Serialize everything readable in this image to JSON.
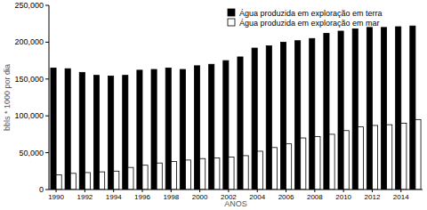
{
  "chart_data": {
    "type": "bar",
    "x_label": "ANOS",
    "y_label": "bbls * 1000 por dia",
    "categories": [
      "1990",
      null,
      "1992",
      null,
      "1994",
      null,
      "1996",
      null,
      "1998",
      null,
      "2000",
      null,
      "2002",
      null,
      "2004",
      null,
      "2006",
      null,
      "2008",
      null,
      "2010",
      null,
      "2012",
      null,
      "2014",
      null
    ],
    "series": [
      {
        "name": "Água produzida em exploração em terra",
        "color": "#000000",
        "values": [
          165000,
          164000,
          159000,
          155000,
          154000,
          155000,
          162000,
          163000,
          165000,
          163000,
          168000,
          170000,
          175000,
          180000,
          192000,
          195000,
          200000,
          202000,
          205000,
          212000,
          215000,
          218000,
          220000,
          220000,
          221000,
          222000
        ]
      },
      {
        "name": "Água produzida em exploração em mar",
        "color": "#ffffff",
        "values": [
          20000,
          22000,
          23000,
          24000,
          25000,
          30000,
          33000,
          36000,
          38000,
          40000,
          42000,
          43000,
          44000,
          46000,
          52000,
          57000,
          62000,
          70000,
          72000,
          75000,
          80000,
          85000,
          87000,
          88000,
          90000,
          95000
        ]
      }
    ],
    "ylim": [
      0,
      250000
    ],
    "yticks": [
      0,
      {
        "value": 50000,
        "label": "50,000"
      },
      {
        "value": 100000,
        "label": "100,000"
      },
      {
        "value": 150000,
        "label": "150,000"
      },
      {
        "value": 200000,
        "label": "200,000"
      },
      {
        "value": 250000,
        "label": "250,000"
      }
    ],
    "grid": false,
    "legend": "upper right"
  }
}
